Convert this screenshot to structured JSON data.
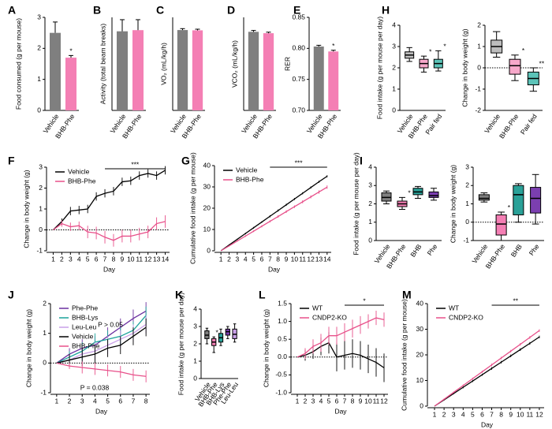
{
  "chart_data": [
    {
      "type": "bar",
      "label": "A",
      "ylabel": "Food consumed (g per mouse)",
      "categories": [
        "Vehicle",
        "BHB-Phe"
      ],
      "values": [
        2.5,
        1.7
      ],
      "errors": [
        0.35,
        0.07
      ],
      "colors": [
        "#7f7f7f",
        "#f47fb4"
      ],
      "ylim": [
        0,
        3
      ],
      "yticks": [
        0,
        1,
        2,
        3
      ],
      "significance": [
        null,
        "*"
      ]
    },
    {
      "type": "bar",
      "label": "B",
      "ylabel": "Activity (total beam breaks)",
      "categories": [
        "Vehicle",
        "BHB-Phe"
      ],
      "values": [
        680,
        690
      ],
      "errors": [
        100,
        90
      ],
      "colors": [
        "#7f7f7f",
        "#f47fb4"
      ],
      "ylim": [
        0,
        800
      ],
      "yticks": []
    },
    {
      "type": "bar",
      "label": "C",
      "ylabel": "VO₂ (mL/kg/h)",
      "categories": [
        "Vehicle",
        "BHB-Phe"
      ],
      "values": [
        2850,
        2840
      ],
      "errors": [
        50,
        40
      ],
      "colors": [
        "#7f7f7f",
        "#f47fb4"
      ],
      "ylim": [
        0,
        3300
      ],
      "yticks": []
    },
    {
      "type": "bar",
      "label": "D",
      "ylabel": "VCO₂ (mL/kg/h)",
      "categories": [
        "Vehicle",
        "BHB-Phe"
      ],
      "values": [
        2280,
        2240
      ],
      "errors": [
        40,
        30
      ],
      "colors": [
        "#7f7f7f",
        "#f47fb4"
      ],
      "ylim": [
        0,
        2700
      ],
      "yticks": []
    },
    {
      "type": "bar",
      "label": "E",
      "ylabel": "RER",
      "categories": [
        "Vehicle",
        "BHB-Phe"
      ],
      "values": [
        0.803,
        0.795
      ],
      "errors": [
        0.002,
        0.002
      ],
      "colors": [
        "#7f7f7f",
        "#f47fb4"
      ],
      "ylim": [
        0.7,
        0.85
      ],
      "yticks": [
        {
          "value": 0.7,
          "label": "0.70"
        },
        {
          "value": 0.75,
          "label": "0.75"
        },
        {
          "value": 0.8,
          "label": "0.80"
        },
        {
          "value": 0.85,
          "label": "0.85"
        }
      ],
      "significance": [
        null,
        "*"
      ]
    },
    {
      "type": "box",
      "label": "H",
      "ylabel": "Food intake (g per mouse per day)",
      "categories": [
        "Vehicle",
        "BHB-Phe",
        "Pair fed"
      ],
      "boxes": [
        [
          2.3,
          2.45,
          2.6,
          2.75,
          2.95
        ],
        [
          1.8,
          2.0,
          2.2,
          2.4,
          2.55
        ],
        [
          1.85,
          2.0,
          2.2,
          2.4,
          2.8
        ]
      ],
      "colors": [
        "#bdbdbd",
        "#f7a8ca",
        "#5cc3b8"
      ],
      "ylim": [
        0,
        4
      ],
      "yticks": [
        0,
        1,
        2,
        3,
        4
      ],
      "significance": [
        null,
        "*",
        "*"
      ]
    },
    {
      "type": "box",
      "ylabel": "Change in body weight (g)",
      "categories": [
        "Vehicle",
        "BHB-Phe",
        "Pair fed"
      ],
      "boxes": [
        [
          0.5,
          0.7,
          1.0,
          1.3,
          1.7
        ],
        [
          -0.6,
          -0.3,
          0.1,
          0.4,
          0.6
        ],
        [
          -1.1,
          -0.8,
          -0.5,
          -0.2,
          0.0
        ]
      ],
      "colors": [
        "#bdbdbd",
        "#f7a8ca",
        "#5cc3b8"
      ],
      "ylim": [
        -2,
        2
      ],
      "yticks": [
        -2,
        -1,
        0,
        1,
        2
      ],
      "significance": [
        null,
        "*",
        "**"
      ]
    },
    {
      "type": "line",
      "label": "F",
      "ylabel": "Change in body weight (g)",
      "xlabel": "Day",
      "x": [
        1,
        2,
        3,
        4,
        5,
        6,
        7,
        8,
        9,
        10,
        11,
        12,
        13,
        14
      ],
      "xlim": [
        0.5,
        14.5
      ],
      "xticks": [
        1,
        2,
        3,
        4,
        5,
        6,
        7,
        8,
        9,
        10,
        11,
        12,
        13,
        14
      ],
      "ylim": [
        -1,
        3
      ],
      "yticks": [
        -1,
        0,
        1,
        2,
        3
      ],
      "significance": "***",
      "series": [
        {
          "name": "Vehicle",
          "color": "#000000",
          "values": [
            0,
            0.4,
            0.9,
            0.95,
            1.0,
            1.6,
            1.75,
            1.85,
            2.3,
            2.35,
            2.6,
            2.7,
            2.6,
            2.85
          ],
          "errors": [
            0,
            0.15,
            0.2,
            0.2,
            0.2,
            0.2,
            0.2,
            0.2,
            0.2,
            0.2,
            0.2,
            0.2,
            0.2,
            0.2
          ]
        },
        {
          "name": "BHB-Phe",
          "color": "#e8508a",
          "values": [
            0,
            0.3,
            0.15,
            0.2,
            -0.1,
            -0.15,
            -0.35,
            -0.5,
            -0.3,
            -0.3,
            -0.2,
            -0.1,
            0.3,
            0.4
          ],
          "errors": [
            0,
            0.15,
            0.2,
            0.2,
            0.3,
            0.3,
            0.3,
            0.3,
            0.3,
            0.3,
            0.3,
            0.3,
            0.3,
            0.3
          ]
        }
      ]
    },
    {
      "type": "line",
      "label": "G",
      "ylabel": "Cumulative food intake (g per mouse)",
      "xlabel": "Day",
      "x": [
        1,
        2,
        3,
        4,
        5,
        6,
        7,
        8,
        9,
        10,
        11,
        12,
        13,
        14
      ],
      "xlim": [
        0.5,
        14.5
      ],
      "xticks": [
        1,
        2,
        3,
        4,
        5,
        6,
        7,
        8,
        9,
        10,
        11,
        12,
        13,
        14
      ],
      "ylim": [
        0,
        40
      ],
      "yticks": [
        0,
        10,
        20,
        30,
        40
      ],
      "significance": "***",
      "series": [
        {
          "name": "Vehicle",
          "color": "#000000",
          "values": [
            0,
            2.7,
            5.4,
            8.1,
            10.8,
            13.5,
            16.2,
            18.9,
            21.6,
            24.3,
            27,
            29.7,
            32.4,
            35
          ],
          "errors": [
            0,
            0.3,
            0.3,
            0.4,
            0.4,
            0.4,
            0.5,
            0.5,
            0.5,
            0.5,
            0.5,
            0.5,
            0.5,
            0.5
          ]
        },
        {
          "name": "BHB-Phe",
          "color": "#e8508a",
          "values": [
            0,
            2.3,
            4.6,
            6.9,
            9.2,
            11.5,
            13.8,
            16.1,
            18.4,
            20.7,
            23,
            25.3,
            27.6,
            29.9
          ],
          "errors": [
            0,
            0.3,
            0.3,
            0.4,
            0.4,
            0.5,
            0.5,
            0.6,
            0.6,
            0.6,
            0.7,
            0.7,
            0.8,
            0.8
          ]
        }
      ]
    },
    {
      "type": "box",
      "label": "I",
      "ylabel": "Food intake (g per mouse per day)",
      "categories": [
        "Vehicle",
        "BHB-Phe",
        "BHB",
        "Phe"
      ],
      "boxes": [
        [
          2.0,
          2.15,
          2.35,
          2.6,
          2.7
        ],
        [
          1.7,
          1.85,
          2.0,
          2.15,
          2.35
        ],
        [
          2.3,
          2.5,
          2.65,
          2.85,
          2.95
        ],
        [
          2.2,
          2.35,
          2.45,
          2.65,
          2.85
        ]
      ],
      "colors": [
        "#7f7f7f",
        "#f47fb4",
        "#2aa198",
        "#7b3fb0"
      ],
      "ylim": [
        0,
        4
      ],
      "yticks": [
        0,
        1,
        2,
        3,
        4
      ],
      "significance": [
        null,
        "*",
        null,
        null
      ]
    },
    {
      "type": "box",
      "ylabel": "Change in body weight (g)",
      "categories": [
        "Vehicle",
        "BHB-Phe",
        "BHB",
        "Phe"
      ],
      "boxes": [
        [
          1.1,
          1.2,
          1.3,
          1.5,
          1.6
        ],
        [
          -1.0,
          -0.7,
          -0.1,
          0.4,
          0.55
        ],
        [
          0.0,
          0.4,
          1.5,
          2.0,
          2.1
        ],
        [
          -0.1,
          0.5,
          1.3,
          1.9,
          2.6
        ]
      ],
      "colors": [
        "#7f7f7f",
        "#f47fb4",
        "#2aa198",
        "#7b3fb0"
      ],
      "ylim": [
        -1,
        3
      ],
      "yticks": [
        -1,
        0,
        1,
        2,
        3
      ],
      "significance": [
        null,
        "*",
        null,
        null
      ]
    },
    {
      "type": "line",
      "label": "J",
      "ylabel": "Change in body weight (g)",
      "xlabel": "Day",
      "x": [
        1,
        2,
        3,
        4,
        5,
        6,
        7,
        8
      ],
      "xlim": [
        0.7,
        8.3
      ],
      "xticks": [
        1,
        2,
        3,
        4,
        5,
        6,
        7,
        8
      ],
      "ylim": [
        -1,
        2
      ],
      "yticks": [
        -1,
        0,
        1,
        2
      ],
      "annotations": [
        "P > 0.05",
        "P = 0.038"
      ],
      "series": [
        {
          "name": "Phe-Phe",
          "color": "#6b2fa0",
          "values": [
            0,
            0.3,
            0.5,
            0.6,
            0.9,
            1.2,
            1.5,
            1.75
          ],
          "errors": [
            0,
            0.2,
            0.3,
            0.3,
            0.3,
            0.3,
            0.3,
            0.3
          ]
        },
        {
          "name": "BHB-Lys",
          "color": "#1aa39a",
          "values": [
            0,
            0.2,
            0.4,
            0.7,
            0.8,
            0.9,
            1.1,
            1.6
          ],
          "errors": [
            0,
            0.2,
            0.3,
            0.3,
            0.3,
            0.3,
            0.3,
            0.3
          ]
        },
        {
          "name": "Leu-Leu",
          "color": "#c9a0e8",
          "values": [
            0,
            0.1,
            0.3,
            0.4,
            0.6,
            0.8,
            1.0,
            1.3
          ],
          "errors": [
            0,
            0.2,
            0.3,
            0.3,
            0.3,
            0.3,
            0.3,
            0.3
          ]
        },
        {
          "name": "Vehicle",
          "color": "#000000",
          "values": [
            0,
            0.1,
            0.2,
            0.3,
            0.5,
            0.6,
            0.9,
            1.2
          ],
          "errors": [
            0,
            0.2,
            0.3,
            0.3,
            0.3,
            0.3,
            0.3,
            0.3
          ]
        },
        {
          "name": "BHB-Phe",
          "color": "#e8508a",
          "values": [
            0,
            -0.1,
            -0.15,
            -0.2,
            -0.25,
            -0.3,
            -0.4,
            -0.45
          ],
          "errors": [
            0,
            0.1,
            0.2,
            0.2,
            0.2,
            0.2,
            0.2,
            0.2
          ]
        }
      ]
    },
    {
      "type": "box",
      "label": "K",
      "ylabel": "Food intake (g per mouse per day)",
      "categories": [
        "Vehicle",
        "BHB-Phe",
        "BHB-Lys",
        "Phe-Phe",
        "Leu-Leu"
      ],
      "boxes": [
        [
          2.0,
          2.3,
          2.5,
          2.75,
          2.9
        ],
        [
          1.5,
          1.9,
          2.1,
          2.3,
          2.4
        ],
        [
          1.9,
          2.1,
          2.35,
          2.6,
          2.85
        ],
        [
          2.3,
          2.5,
          2.7,
          2.85,
          3.0
        ],
        [
          2.1,
          2.3,
          2.55,
          2.85,
          3.15
        ]
      ],
      "colors": [
        "#7f7f7f",
        "#f47fb4",
        "#2aa198",
        "#7b3fb0",
        "#c9a0e8"
      ],
      "ylim": [
        0,
        4
      ],
      "yticks": [
        0,
        1,
        2,
        3,
        4
      ],
      "significance": [
        null,
        "*",
        null,
        null,
        null
      ]
    },
    {
      "type": "line",
      "label": "L",
      "ylabel": "Change in body weight (g)",
      "xlabel": "Day",
      "x": [
        1,
        2,
        3,
        4,
        5,
        6,
        7,
        8,
        9,
        10,
        11,
        12
      ],
      "xlim": [
        0.5,
        12.5
      ],
      "xticks": [
        1,
        2,
        3,
        4,
        5,
        6,
        7,
        8,
        9,
        10,
        11,
        12
      ],
      "ylim": [
        -1,
        1.5
      ],
      "yticks": [
        {
          "value": -1,
          "label": "-1.0"
        },
        -0.5,
        {
          "value": 0,
          "label": "0.0"
        },
        0.5,
        {
          "value": 1,
          "label": "1.0"
        },
        1.5
      ],
      "significance": "*",
      "series": [
        {
          "name": "WT",
          "color": "#000000",
          "values": [
            0,
            0.05,
            0.15,
            0.3,
            0.4,
            0.0,
            0.05,
            0.1,
            0.05,
            -0.05,
            -0.15,
            -0.3
          ],
          "errors": [
            0,
            0.15,
            0.2,
            0.25,
            0.3,
            0.4,
            0.4,
            0.4,
            0.4,
            0.4,
            0.4,
            0.4
          ]
        },
        {
          "name": "CNDP2-KO",
          "color": "#e8508a",
          "values": [
            0,
            0.1,
            0.3,
            0.4,
            0.6,
            0.6,
            0.7,
            0.8,
            0.9,
            1.0,
            1.1,
            1.05
          ],
          "errors": [
            0,
            0.15,
            0.2,
            0.25,
            0.25,
            0.25,
            0.25,
            0.25,
            0.25,
            0.2,
            0.2,
            0.2
          ]
        }
      ]
    },
    {
      "type": "line",
      "label": "M",
      "ylabel": "Cumulative food intake (g per mouse)",
      "xlabel": "Day",
      "x": [
        1,
        2,
        3,
        4,
        5,
        6,
        7,
        8,
        9,
        10,
        11,
        12
      ],
      "xlim": [
        0.5,
        12.5
      ],
      "xticks": [
        1,
        2,
        3,
        4,
        5,
        6,
        7,
        8,
        9,
        10,
        11,
        12
      ],
      "ylim": [
        0,
        40
      ],
      "yticks": [
        0,
        10,
        20,
        30,
        40
      ],
      "significance": "**",
      "series": [
        {
          "name": "WT",
          "color": "#000000",
          "values": [
            0,
            2.45,
            4.9,
            7.35,
            9.8,
            12.25,
            14.7,
            17.15,
            19.6,
            22.05,
            24.5,
            27
          ],
          "errors": [
            0,
            0.3,
            0.3,
            0.4,
            0.4,
            0.4,
            0.5,
            0.5,
            0.5,
            0.5,
            0.5,
            0.5
          ]
        },
        {
          "name": "CNDP2-KO",
          "color": "#e8508a",
          "values": [
            0,
            2.68,
            5.36,
            8.04,
            10.72,
            13.4,
            16.08,
            18.76,
            21.44,
            24.12,
            26.8,
            29.5
          ],
          "errors": [
            0,
            0.3,
            0.3,
            0.4,
            0.4,
            0.4,
            0.5,
            0.5,
            0.5,
            0.5,
            0.5,
            0.5
          ]
        }
      ]
    }
  ]
}
